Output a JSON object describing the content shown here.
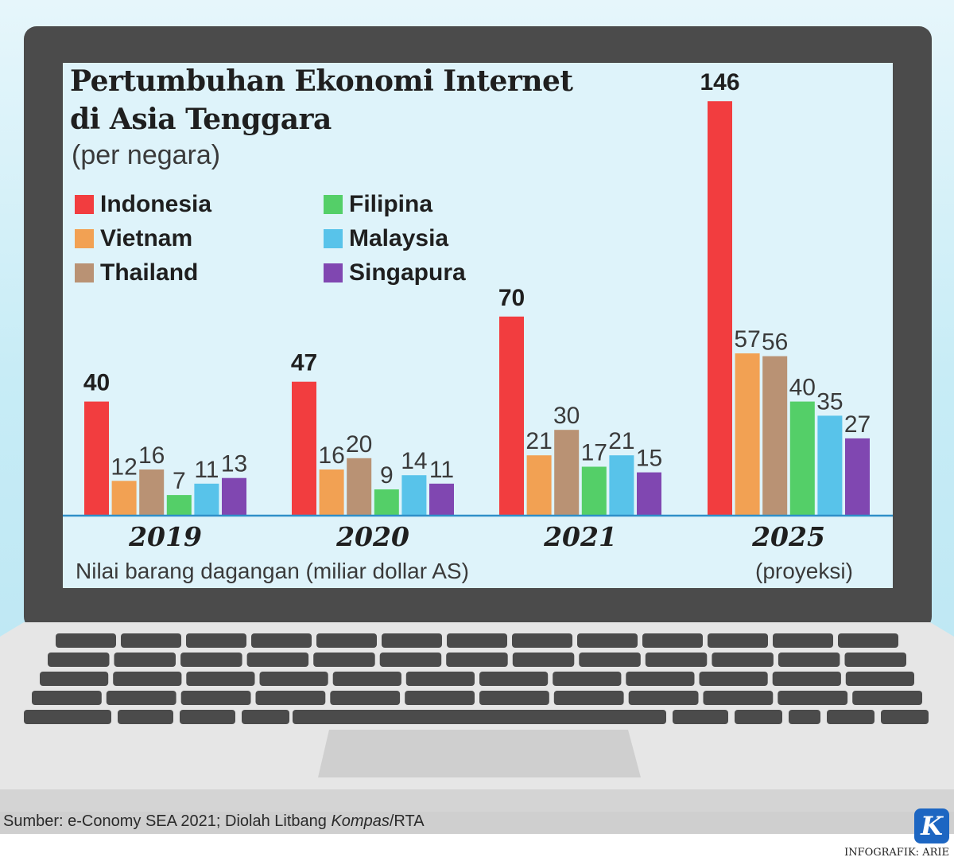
{
  "title_line1": "Pertumbuhan Ekonomi Internet",
  "title_line2": "di Asia Tenggara",
  "subtitle": "(per negara)",
  "legend": [
    {
      "name": "Indonesia",
      "color": "#f23d3f"
    },
    {
      "name": "Vietnam",
      "color": "#f2a153"
    },
    {
      "name": "Thailand",
      "color": "#b99274"
    },
    {
      "name": "Filipina",
      "color": "#54cf68"
    },
    {
      "name": "Malaysia",
      "color": "#58c3ea"
    },
    {
      "name": "Singapura",
      "color": "#8047b1"
    }
  ],
  "xlabel": "Nilai barang dagangan (miliar dollar AS)",
  "projection_note": "(proyeksi)",
  "source": {
    "prefix": "Sumber: e-Conomy SEA 2021; Diolah Litbang ",
    "italic": "Kompas",
    "suffix": "/RTA"
  },
  "logo_letter": "K",
  "credit": "INFOGRAFIK: ARIE",
  "chart_data": {
    "type": "bar",
    "categories": [
      "2019",
      "2020",
      "2021",
      "2025"
    ],
    "series": [
      {
        "name": "Indonesia",
        "values": [
          40,
          47,
          70,
          146
        ]
      },
      {
        "name": "Vietnam",
        "values": [
          12,
          16,
          21,
          57
        ]
      },
      {
        "name": "Thailand",
        "values": [
          16,
          20,
          30,
          56
        ]
      },
      {
        "name": "Filipina",
        "values": [
          7,
          9,
          17,
          40
        ]
      },
      {
        "name": "Malaysia",
        "values": [
          11,
          14,
          21,
          35
        ]
      },
      {
        "name": "Singapura",
        "values": [
          13,
          11,
          15,
          27
        ]
      }
    ],
    "colors": [
      "#f23d3f",
      "#f2a153",
      "#b99274",
      "#54cf68",
      "#58c3ea",
      "#8047b1"
    ],
    "ylim": [
      0,
      146
    ],
    "grid": false,
    "legend_position": "top-left",
    "xlabel": "Nilai barang dagangan (miliar dollar AS)",
    "ylabel": ""
  }
}
